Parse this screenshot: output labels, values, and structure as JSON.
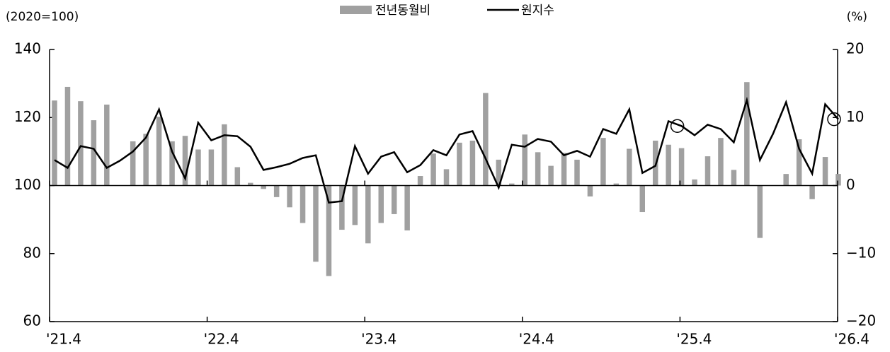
{
  "chart_data": {
    "type": "bar-line",
    "y_label": "(2020=100)",
    "y2_label": "(%)",
    "categories": [
      "'21.4",
      null,
      null,
      null,
      null,
      null,
      null,
      null,
      null,
      null,
      null,
      null,
      "'22.4",
      null,
      null,
      null,
      null,
      null,
      null,
      null,
      null,
      null,
      null,
      null,
      "'23.4",
      null,
      null,
      null,
      null,
      null,
      null,
      null,
      null,
      null,
      null,
      null,
      "'24.4",
      null,
      null,
      null,
      null,
      null,
      null,
      null,
      null,
      null,
      null,
      null,
      "'25.4",
      null,
      null,
      null,
      null,
      null,
      null,
      null,
      null,
      null,
      null,
      null,
      "'26.4"
    ],
    "series": [
      {
        "name": "전년동월비",
        "type": "bar",
        "axis": "y2",
        "color": "#a0a0a0",
        "values": [
          12.5,
          14.5,
          12.4,
          9.6,
          11.9,
          null,
          6.5,
          7.6,
          10.1,
          6.5,
          7.3,
          5.3,
          5.3,
          9.0,
          2.7,
          0.4,
          -0.5,
          -1.7,
          -3.2,
          -5.5,
          -11.2,
          -13.3,
          -6.5,
          -5.8,
          -8.5,
          -5.5,
          -4.2,
          -6.6,
          1.4,
          4.7,
          2.4,
          6.3,
          6.6,
          13.6,
          3.8,
          0.3,
          7.5,
          4.9,
          2.9,
          4.8,
          3.8,
          -1.6,
          7.0,
          0.3,
          5.4,
          -3.9,
          6.6,
          6.0,
          5.5,
          0.9,
          4.3,
          7.0,
          2.3,
          15.2,
          -7.7,
          null,
          1.7,
          6.8,
          -2.0,
          4.2,
          1.7
        ]
      },
      {
        "name": "원지수",
        "type": "line",
        "color": "#000000",
        "values": [
          107.5,
          105.2,
          111.6,
          110.8,
          105.2,
          107.3,
          110.0,
          114.1,
          122.4,
          110.0,
          102.1,
          118.5,
          113.3,
          114.8,
          114.5,
          111.4,
          104.6,
          105.4,
          106.4,
          108.1,
          108.9,
          95.0,
          95.4,
          111.6,
          103.5,
          108.5,
          109.8,
          103.9,
          106.0,
          110.4,
          108.9,
          115.0,
          116.0,
          107.9,
          99.4,
          112.0,
          111.4,
          113.7,
          112.9,
          108.9,
          110.2,
          108.5,
          116.6,
          115.2,
          122.4,
          103.7,
          105.8,
          118.9,
          117.5,
          114.8,
          117.9,
          116.6,
          112.7,
          125.1,
          107.5,
          115.2,
          124.5,
          110.8,
          103.5,
          123.9,
          119.5
        ]
      }
    ],
    "ylim": [
      60,
      140
    ],
    "yticks": [
      60,
      80,
      100,
      120,
      140
    ],
    "y2lim": [
      -20,
      20
    ],
    "y2ticks": [
      {
        "value": -20,
        "label": "−20"
      },
      {
        "value": -10,
        "label": "−10"
      },
      0,
      10,
      20
    ]
  }
}
